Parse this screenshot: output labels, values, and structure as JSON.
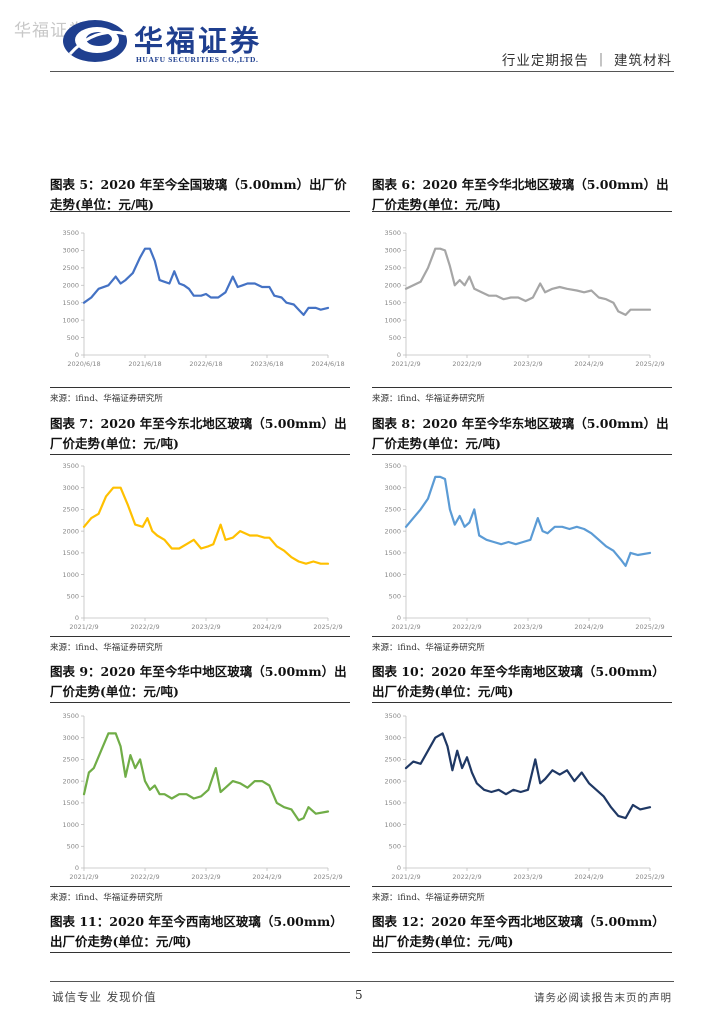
{
  "header": {
    "watermark": "华福证券",
    "logo_zh": "华福证券",
    "logo_en": "HUAFU SECURITIES CO.,LTD.",
    "report_type": "行业定期报告 ｜ 建筑材料",
    "brand_color": "#1f3f8f"
  },
  "footer": {
    "left": "诚信专业  发现价值",
    "page": "5",
    "right": "请务必阅读报告末页的声明"
  },
  "panels": [
    {
      "title": "图表 5：2020 年至今全国玻璃（5.00mm）出厂价走势(单位：元/吨)",
      "source": "来源：ifind、华福证券研究所"
    },
    {
      "title": "图表 6：2020 年至今华北地区玻璃（5.00mm）出厂价走势(单位：元/吨)",
      "source": "来源：ifind、华福证券研究所"
    },
    {
      "title": "图表 7：2020 年至今东北地区玻璃（5.00mm）出厂价走势(单位：元/吨)",
      "source": "来源：ifind、华福证券研究所"
    },
    {
      "title": "图表 8：2020 年至今华东地区玻璃（5.00mm）出厂价走势(单位：元/吨)",
      "source": "来源：ifind、华福证券研究所"
    },
    {
      "title": "图表 9：2020 年至今华中地区玻璃（5.00mm）出厂价走势(单位：元/吨)",
      "source": "来源：ifind、华福证券研究所"
    },
    {
      "title": "图表 10：2020 年至今华南地区玻璃（5.00mm）出厂价走势(单位：元/吨)",
      "source": "来源：ifind、华福证券研究所"
    },
    {
      "title": "图表 11：2020 年至今西南地区玻璃（5.00mm）出厂价走势(单位：元/吨)",
      "source": ""
    },
    {
      "title": "图表 12：2020 年至今西北地区玻璃（5.00mm）出厂价走势(单位：元/吨)",
      "source": ""
    }
  ],
  "chart_data": [
    {
      "type": "line",
      "title": "全国玻璃（5.00mm）出厂价",
      "color": "#4472c4",
      "ylim": [
        0,
        3500
      ],
      "yticks": [
        0,
        500,
        1000,
        1500,
        2000,
        2500,
        3000,
        3500
      ],
      "xticks": [
        "2020/6/18",
        "2021/6/18",
        "2022/6/18",
        "2023/6/18",
        "2024/6/18"
      ],
      "x": [
        0,
        0.03,
        0.06,
        0.1,
        0.13,
        0.15,
        0.17,
        0.2,
        0.23,
        0.25,
        0.27,
        0.29,
        0.31,
        0.33,
        0.35,
        0.37,
        0.39,
        0.41,
        0.43,
        0.45,
        0.48,
        0.5,
        0.52,
        0.55,
        0.58,
        0.61,
        0.63,
        0.65,
        0.67,
        0.7,
        0.73,
        0.76,
        0.78,
        0.81,
        0.83,
        0.86,
        0.88,
        0.9,
        0.92,
        0.95,
        0.97,
        1
      ],
      "values": [
        1500,
        1650,
        1900,
        2000,
        2250,
        2050,
        2150,
        2350,
        2800,
        3050,
        3050,
        2700,
        2150,
        2100,
        2050,
        2400,
        2050,
        2000,
        1900,
        1700,
        1700,
        1750,
        1650,
        1650,
        1800,
        2250,
        1950,
        2000,
        2050,
        2050,
        1950,
        1950,
        1700,
        1650,
        1500,
        1450,
        1300,
        1150,
        1350,
        1350,
        1300,
        1350
      ]
    },
    {
      "type": "line",
      "title": "华北地区玻璃（5.00mm）出厂价",
      "color": "#a6a6a6",
      "ylim": [
        0,
        3500
      ],
      "yticks": [
        0,
        500,
        1000,
        1500,
        2000,
        2500,
        3000,
        3500
      ],
      "xticks": [
        "2021/2/9",
        "2022/2/9",
        "2023/2/9",
        "2024/2/9",
        "2025/2/9"
      ],
      "x": [
        0,
        0.03,
        0.06,
        0.09,
        0.12,
        0.14,
        0.16,
        0.18,
        0.2,
        0.22,
        0.24,
        0.26,
        0.28,
        0.31,
        0.34,
        0.37,
        0.4,
        0.43,
        0.46,
        0.49,
        0.52,
        0.55,
        0.57,
        0.6,
        0.63,
        0.66,
        0.7,
        0.73,
        0.76,
        0.79,
        0.82,
        0.85,
        0.87,
        0.9,
        0.92,
        0.95,
        1
      ],
      "values": [
        1900,
        2000,
        2100,
        2500,
        3050,
        3050,
        3000,
        2550,
        2000,
        2150,
        2000,
        2250,
        1900,
        1800,
        1700,
        1700,
        1600,
        1650,
        1650,
        1550,
        1650,
        2050,
        1800,
        1900,
        1950,
        1900,
        1850,
        1800,
        1850,
        1650,
        1600,
        1500,
        1250,
        1150,
        1300,
        1300,
        1300
      ]
    },
    {
      "type": "line",
      "title": "东北地区玻璃（5.00mm）出厂价",
      "color": "#ffc000",
      "ylim": [
        0,
        3500
      ],
      "yticks": [
        0,
        500,
        1000,
        1500,
        2000,
        2500,
        3000,
        3500
      ],
      "xticks": [
        "2021/2/9",
        "2022/2/9",
        "2023/2/9",
        "2024/2/9",
        "2025/2/9"
      ],
      "x": [
        0,
        0.03,
        0.06,
        0.09,
        0.12,
        0.15,
        0.18,
        0.21,
        0.24,
        0.26,
        0.28,
        0.3,
        0.33,
        0.36,
        0.39,
        0.42,
        0.45,
        0.48,
        0.51,
        0.53,
        0.56,
        0.58,
        0.61,
        0.64,
        0.68,
        0.71,
        0.74,
        0.76,
        0.79,
        0.82,
        0.85,
        0.88,
        0.91,
        0.94,
        0.97,
        1
      ],
      "values": [
        2100,
        2300,
        2400,
        2800,
        3000,
        3000,
        2600,
        2150,
        2100,
        2300,
        2000,
        1900,
        1800,
        1600,
        1600,
        1700,
        1800,
        1600,
        1650,
        1700,
        2150,
        1800,
        1850,
        2000,
        1900,
        1900,
        1850,
        1850,
        1650,
        1550,
        1400,
        1300,
        1250,
        1300,
        1250,
        1250
      ]
    },
    {
      "type": "line",
      "title": "华东地区玻璃（5.00mm）出厂价",
      "color": "#5b9bd5",
      "ylim": [
        0,
        3500
      ],
      "yticks": [
        0,
        500,
        1000,
        1500,
        2000,
        2500,
        3000,
        3500
      ],
      "xticks": [
        "2021/2/9",
        "2022/2/9",
        "2023/2/9",
        "2024/2/9",
        "2025/2/9"
      ],
      "x": [
        0,
        0.03,
        0.06,
        0.09,
        0.12,
        0.14,
        0.16,
        0.18,
        0.2,
        0.22,
        0.24,
        0.26,
        0.28,
        0.3,
        0.33,
        0.36,
        0.39,
        0.42,
        0.45,
        0.48,
        0.51,
        0.54,
        0.56,
        0.58,
        0.61,
        0.64,
        0.67,
        0.7,
        0.73,
        0.76,
        0.79,
        0.82,
        0.85,
        0.88,
        0.9,
        0.92,
        0.95,
        1
      ],
      "values": [
        2100,
        2300,
        2500,
        2750,
        3250,
        3250,
        3200,
        2500,
        2150,
        2350,
        2100,
        2200,
        2500,
        1900,
        1800,
        1750,
        1700,
        1750,
        1700,
        1750,
        1800,
        2300,
        2000,
        1950,
        2100,
        2100,
        2050,
        2100,
        2050,
        1950,
        1800,
        1650,
        1550,
        1350,
        1200,
        1500,
        1450,
        1500
      ]
    },
    {
      "type": "line",
      "title": "华中地区玻璃（5.00mm）出厂价",
      "color": "#70ad47",
      "ylim": [
        0,
        3500
      ],
      "yticks": [
        0,
        500,
        1000,
        1500,
        2000,
        2500,
        3000,
        3500
      ],
      "xticks": [
        "2021/2/9",
        "2022/2/9",
        "2023/2/9",
        "2024/2/9",
        "2025/2/9"
      ],
      "x": [
        0,
        0.02,
        0.04,
        0.07,
        0.1,
        0.13,
        0.15,
        0.17,
        0.19,
        0.21,
        0.23,
        0.25,
        0.27,
        0.29,
        0.31,
        0.33,
        0.36,
        0.39,
        0.42,
        0.45,
        0.48,
        0.51,
        0.54,
        0.56,
        0.58,
        0.61,
        0.64,
        0.67,
        0.7,
        0.73,
        0.76,
        0.79,
        0.82,
        0.85,
        0.88,
        0.9,
        0.92,
        0.95,
        1
      ],
      "values": [
        1700,
        2200,
        2300,
        2700,
        3100,
        3100,
        2800,
        2100,
        2600,
        2300,
        2500,
        2000,
        1800,
        1900,
        1700,
        1700,
        1600,
        1700,
        1700,
        1600,
        1650,
        1800,
        2300,
        1750,
        1850,
        2000,
        1950,
        1850,
        2000,
        2000,
        1900,
        1500,
        1400,
        1350,
        1100,
        1150,
        1400,
        1250,
        1300
      ]
    },
    {
      "type": "line",
      "title": "华南地区玻璃（5.00mm）出厂价",
      "color": "#1f3864",
      "ylim": [
        0,
        3500
      ],
      "yticks": [
        0,
        500,
        1000,
        1500,
        2000,
        2500,
        3000,
        3500
      ],
      "xticks": [
        "2021/2/9",
        "2022/2/9",
        "2023/2/9",
        "2024/2/9",
        "2025/2/9"
      ],
      "x": [
        0,
        0.03,
        0.06,
        0.09,
        0.12,
        0.15,
        0.17,
        0.19,
        0.21,
        0.23,
        0.25,
        0.27,
        0.29,
        0.32,
        0.35,
        0.38,
        0.41,
        0.44,
        0.47,
        0.5,
        0.53,
        0.55,
        0.57,
        0.6,
        0.63,
        0.66,
        0.69,
        0.72,
        0.75,
        0.78,
        0.81,
        0.84,
        0.87,
        0.9,
        0.93,
        0.96,
        1
      ],
      "values": [
        2300,
        2450,
        2400,
        2700,
        3000,
        3100,
        2800,
        2250,
        2700,
        2300,
        2550,
        2200,
        1950,
        1800,
        1750,
        1800,
        1700,
        1800,
        1750,
        1800,
        2500,
        1950,
        2050,
        2250,
        2150,
        2250,
        2000,
        2200,
        1950,
        1800,
        1650,
        1400,
        1200,
        1150,
        1450,
        1350,
        1400
      ]
    },
    {
      "type": "line",
      "title": "西南地区玻璃（5.00mm）出厂价"
    },
    {
      "type": "line",
      "title": "西北地区玻璃（5.00mm）出厂价"
    }
  ]
}
